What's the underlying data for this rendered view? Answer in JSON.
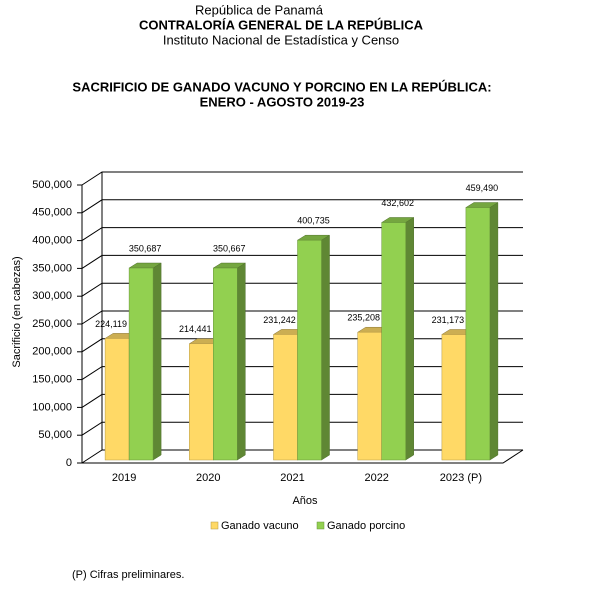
{
  "header": {
    "country": "República de Panamá",
    "institution": "CONTRALORÍA GENERAL DE LA REPÚBLICA",
    "department": "Instituto Nacional de Estadística y Censo"
  },
  "chart_data": {
    "type": "bar3d",
    "title": "SACRIFICIO DE GANADO VACUNO Y PORCINO EN LA REPÚBLICA:",
    "subtitle": "ENERO - AGOSTO 2019-23",
    "y_label": "Sacrificio (en cabezas)",
    "x_label": "Años",
    "categories": [
      "2019",
      "2020",
      "2021",
      "2022",
      "2023 (P)"
    ],
    "series": [
      {
        "name": "Ganado vacuno",
        "color": "#ffd966",
        "values": [
          224119,
          214441,
          231242,
          235208,
          231173
        ],
        "value_labels": [
          "224,119",
          "214,441",
          "231,242",
          "235,208",
          "231,173"
        ]
      },
      {
        "name": "Ganado porcino",
        "color": "#92d050",
        "values": [
          350687,
          350667,
          400735,
          432602,
          459490
        ],
        "value_labels": [
          "350,687",
          "350,667",
          "400,735",
          "432,602",
          "459,490"
        ]
      }
    ],
    "ylim": [
      0,
      500000
    ],
    "yticks": [
      0,
      {
        "value": 50000,
        "label": "50,000"
      },
      {
        "value": 100000,
        "label": "100,000"
      },
      {
        "value": 150000,
        "label": "150,000"
      },
      {
        "value": 200000,
        "label": "200,000"
      },
      {
        "value": 250000,
        "label": "250,000"
      },
      {
        "value": 300000,
        "label": "300,000"
      },
      {
        "value": 350000,
        "label": "350,000"
      },
      {
        "value": 400000,
        "label": "400,000"
      },
      {
        "value": 450000,
        "label": "450,000"
      },
      {
        "value": 500000,
        "label": "500,000"
      }
    ],
    "grid": true,
    "legend": "bottom"
  },
  "footnote": "(P) Cifras preliminares."
}
